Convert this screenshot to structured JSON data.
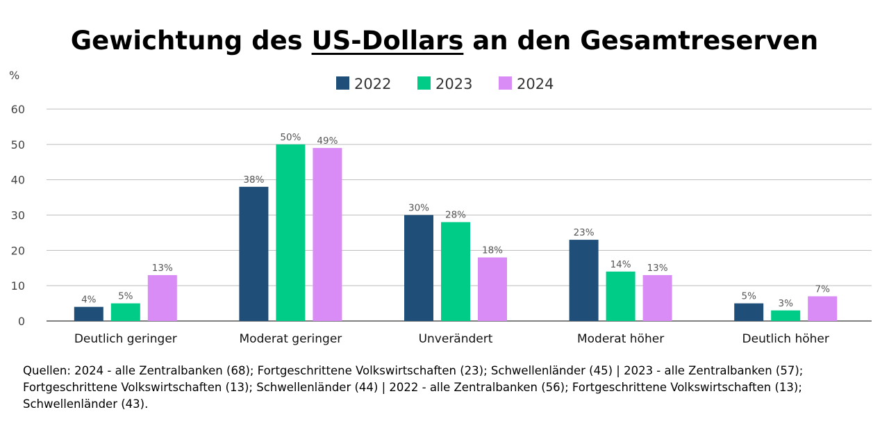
{
  "title": {
    "prefix": "Gewichtung des ",
    "underlined": "US-Dollars",
    "suffix": " an den Gesamtreserven"
  },
  "source_note": "Quellen: 2024 - alle Zentralbanken (68); Fortgeschrittene Volkswirtschaften (23); Schwellenländer (45) | 2023 - alle Zentralbanken (57); Fortgeschrittene Volkswirtschaften (13); Schwellenländer (44) | 2022 - alle Zentralbanken (56); Fortgeschrittene Volkswirtschaften (13); Schwellenländer (43).",
  "chart_data": {
    "type": "bar",
    "title": "Gewichtung des US-Dollars an den Gesamtreserven",
    "ylabel": "%",
    "ylim": [
      0,
      60
    ],
    "yticks": [
      0,
      10,
      20,
      30,
      40,
      50,
      60
    ],
    "grid": true,
    "legend_position": "top-center",
    "categories": [
      "Deutlich geringer",
      "Moderat geringer",
      "Unverändert",
      "Moderat höher",
      "Deutlich höher"
    ],
    "series": [
      {
        "name": "2022",
        "color": "#1f4e79",
        "values": [
          4,
          38,
          30,
          23,
          5
        ],
        "labels": [
          "4%",
          "38%",
          "30%",
          "23%",
          "5%"
        ]
      },
      {
        "name": "2023",
        "color": "#00cc88",
        "values": [
          5,
          50,
          28,
          14,
          3
        ],
        "labels": [
          "5%",
          "50%",
          "28%",
          "14%",
          "3%"
        ]
      },
      {
        "name": "2024",
        "color": "#d98cf5",
        "values": [
          13,
          49,
          18,
          13,
          7
        ],
        "labels": [
          "13%",
          "49%",
          "18%",
          "13%",
          "7%"
        ]
      }
    ]
  }
}
